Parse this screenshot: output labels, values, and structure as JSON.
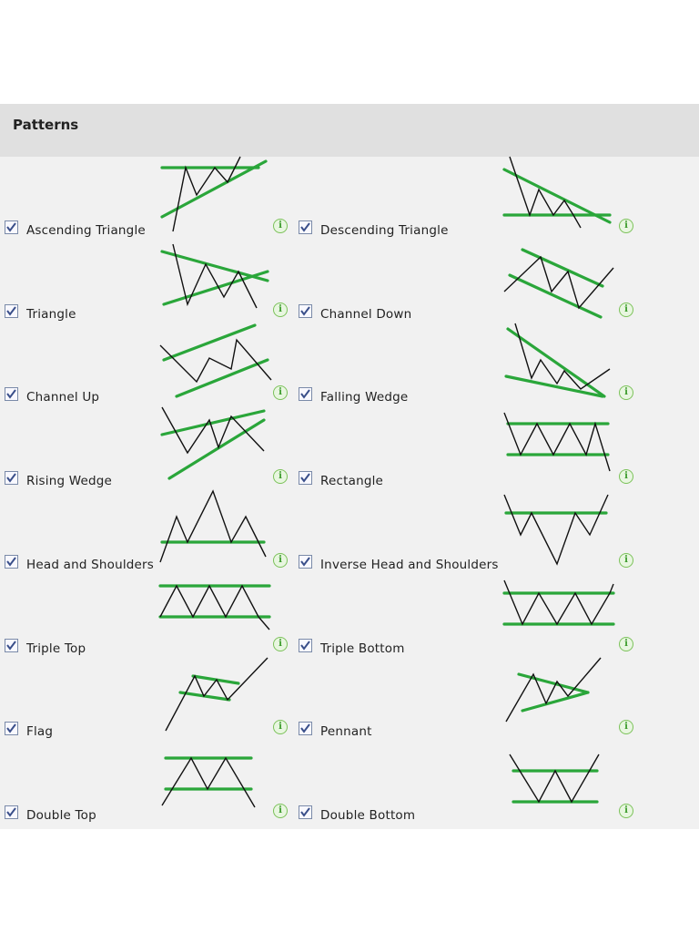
{
  "panel": {
    "title": "Patterns"
  },
  "patterns": [
    {
      "label": "Ascending Triangle",
      "checked": true
    },
    {
      "label": "Descending Triangle",
      "checked": true
    },
    {
      "label": "Triangle",
      "checked": true
    },
    {
      "label": "Channel Down",
      "checked": true
    },
    {
      "label": "Channel Up",
      "checked": true
    },
    {
      "label": "Falling Wedge",
      "checked": true
    },
    {
      "label": "Rising Wedge",
      "checked": true
    },
    {
      "label": "Rectangle",
      "checked": true
    },
    {
      "label": "Head and Shoulders",
      "checked": true
    },
    {
      "label": "Inverse Head and Shoulders",
      "checked": true
    },
    {
      "label": "Triple Top",
      "checked": true
    },
    {
      "label": "Triple Bottom",
      "checked": true
    },
    {
      "label": "Flag",
      "checked": true
    },
    {
      "label": "Pennant",
      "checked": true
    },
    {
      "label": "Double Top",
      "checked": true
    },
    {
      "label": "Double Bottom",
      "checked": true
    }
  ],
  "icons": {
    "info": "info-icon",
    "checkbox": "checkmark-icon"
  },
  "info_glyph": "i",
  "colors": {
    "pattern_line": "#2aa63a",
    "price_line": "#111111",
    "header_bg": "#e0e0e0",
    "panel_bg": "#f1f1f1"
  }
}
